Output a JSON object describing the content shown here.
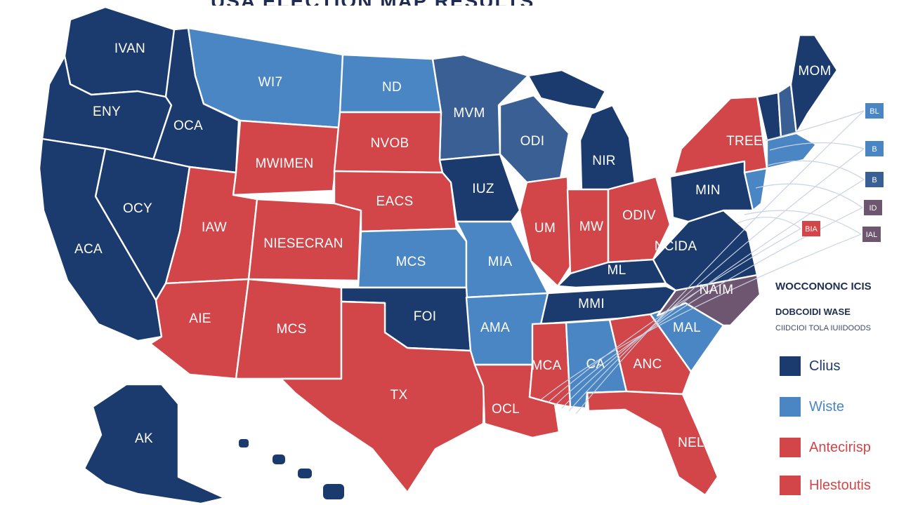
{
  "title": "USA ELECTION MAP RESULTS",
  "colors": {
    "navy": "#1b3a6e",
    "light_blue": "#4a86c4",
    "red": "#d24548",
    "mauve": "#6e5570",
    "steel": "#3a5f94"
  },
  "states": {
    "WA": {
      "label": "IVAN"
    },
    "OR": {
      "label": "ENY"
    },
    "ID": {
      "label": "OCA"
    },
    "MT": {
      "label": "WI7"
    },
    "ND": {
      "label": "ND"
    },
    "MN": {
      "label": "MVM"
    },
    "WY": {
      "label": "MWIMEN"
    },
    "SD": {
      "label": "NVOB"
    },
    "NV": {
      "label": "OCY"
    },
    "CA": {
      "label": "ACA"
    },
    "UT": {
      "label": "IAW"
    },
    "CO": {
      "label": "NIESECRAN"
    },
    "NE": {
      "label": "EACS"
    },
    "IA": {
      "label": "IUZ"
    },
    "WI": {
      "label": "ODI"
    },
    "MI": {
      "label": "NIR"
    },
    "AZ": {
      "label": "AIE"
    },
    "NM": {
      "label": "MCS"
    },
    "KS": {
      "label": "MCS"
    },
    "MO": {
      "label": "MIA"
    },
    "OK": {
      "label": "FOI"
    },
    "TX": {
      "label": "TX"
    },
    "IL": {
      "label": "UM"
    },
    "IN": {
      "label": "MW"
    },
    "OH": {
      "label": "ODIV"
    },
    "KY": {
      "label": "ML"
    },
    "TN": {
      "label": "MMI"
    },
    "AR": {
      "label": "AMA"
    },
    "LA": {
      "label": "OCL"
    },
    "MS": {
      "label": "MCA"
    },
    "AL": {
      "label": "CA"
    },
    "GA": {
      "label": "ANC"
    },
    "FL": {
      "label": "NEL"
    },
    "SC": {
      "label": "MAL"
    },
    "NC": {
      "label": "NAIM"
    },
    "VA": {
      "label": "NCIDA"
    },
    "PA": {
      "label": "MIN"
    },
    "NY": {
      "label": "TREE"
    },
    "ME": {
      "label": "MOM"
    },
    "AK": {
      "label": "AK"
    }
  },
  "callouts": [
    {
      "label": "BL"
    },
    {
      "label": "B"
    },
    {
      "label": "B"
    },
    {
      "label": "ID"
    },
    {
      "label": "BIA"
    },
    {
      "label": "IAL"
    }
  ],
  "legend": {
    "heading": "WOCCONONC ICIS",
    "subheading": "DOBCOIDI WASE",
    "caption": "CIIDCIOI TOLA IUIIDOODS",
    "items": [
      {
        "label": "Clius",
        "color": "#1b3a6e"
      },
      {
        "label": "Wiste",
        "color": "#4a86c4"
      },
      {
        "label": "Antecirisp",
        "color": "#d24548"
      },
      {
        "label": "Hlestoutis",
        "color": "#d24548"
      }
    ]
  }
}
